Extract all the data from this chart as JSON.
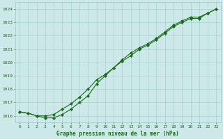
{
  "x": [
    0,
    1,
    2,
    3,
    4,
    5,
    6,
    7,
    8,
    9,
    10,
    11,
    12,
    13,
    14,
    15,
    16,
    17,
    18,
    19,
    20,
    21,
    22,
    23
  ],
  "line1": [
    1016.3,
    1016.2,
    1016.0,
    1016.0,
    1016.1,
    1016.5,
    1016.9,
    1017.4,
    1018.0,
    1018.7,
    1019.1,
    1019.6,
    1020.1,
    1020.5,
    1021.0,
    1021.3,
    1021.7,
    1022.2,
    1022.7,
    1023.0,
    1023.3,
    1023.3,
    1023.7,
    1024.0
  ],
  "line2": [
    1016.3,
    1016.2,
    1016.0,
    1015.85,
    1015.85,
    1016.1,
    1016.5,
    1017.0,
    1017.5,
    1018.4,
    1019.0,
    1019.6,
    1020.2,
    1020.7,
    1021.1,
    1021.4,
    1021.8,
    1022.3,
    1022.8,
    1023.1,
    1023.4,
    1023.4,
    1023.7,
    1024.0
  ],
  "ylim": [
    1015.5,
    1024.5
  ],
  "yticks": [
    1016,
    1017,
    1018,
    1019,
    1020,
    1021,
    1022,
    1023,
    1024
  ],
  "xticks": [
    0,
    1,
    2,
    3,
    4,
    5,
    6,
    7,
    8,
    9,
    10,
    11,
    12,
    13,
    14,
    15,
    16,
    17,
    18,
    19,
    20,
    21,
    22,
    23
  ],
  "xlabel": "Graphe pression niveau de la mer (hPa)",
  "line_color": "#1a6b1a",
  "bg_color": "#cce8e8",
  "grid_color": "#99cccc",
  "text_color": "#1a6b1a",
  "marker": "D",
  "marker_size": 2.0,
  "line_width": 0.8,
  "tick_fontsize": 4.5,
  "xlabel_fontsize": 5.5
}
